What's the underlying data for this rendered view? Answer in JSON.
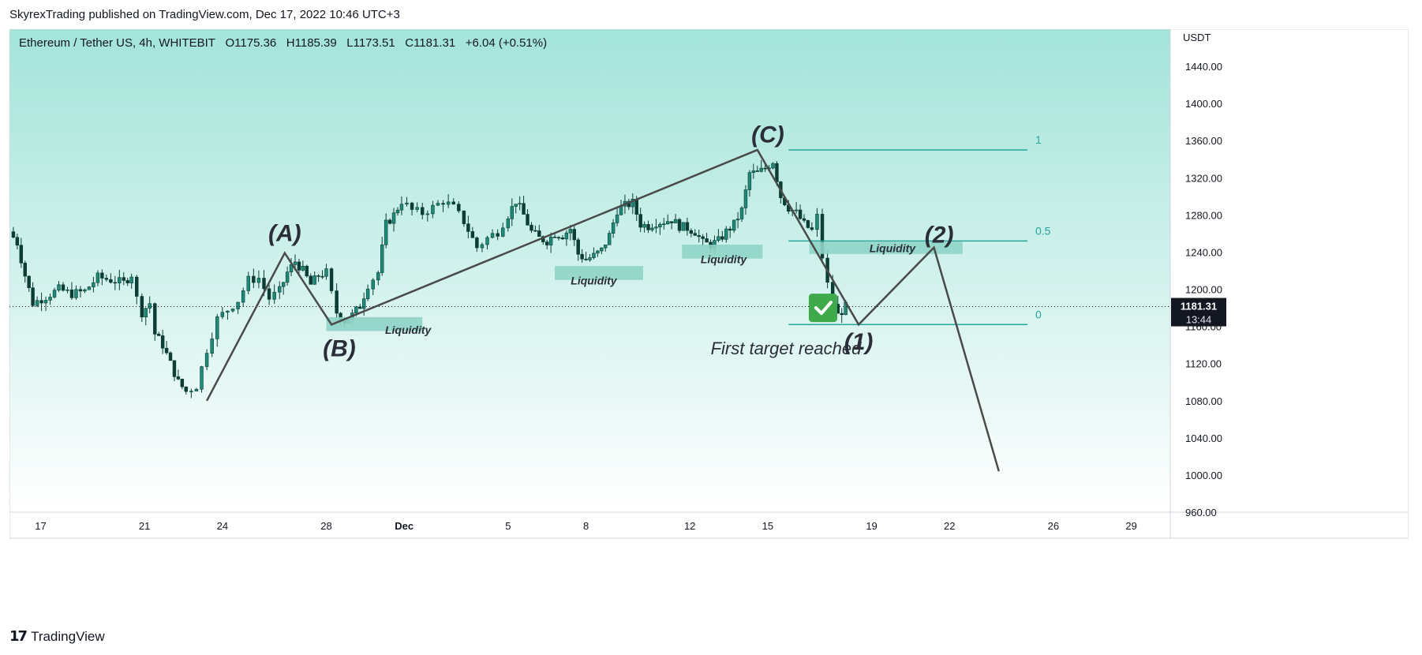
{
  "header": {
    "published_line": "SkyrexTrading published on TradingView.com, Dec 17, 2022 10:46 UTC+3"
  },
  "legend": {
    "symbol": "Ethereum / Tether US, 4h, WHITEBIT",
    "open": "O1175.36",
    "high": "H1185.39",
    "low": "L1173.51",
    "close": "C1181.31",
    "change": "+6.04 (+0.51%)"
  },
  "price_axis": {
    "currency": "USDT",
    "current_price": "1181.31",
    "countdown": "13:44"
  },
  "footer": {
    "brand": "TradingView"
  },
  "colors": {
    "background_top": "#a3e4d9",
    "background_bottom": "#ffffff",
    "candle_up": "#1e8a78",
    "candle_down": "#0b3d34",
    "wave_line": "#4a4a4a",
    "fib_line": "#26a69a",
    "liquidity_box": "#8fd4c6",
    "check_badge": "#3eaa4c"
  },
  "chart_data": {
    "type": "candlestick",
    "symbol": "Ethereum / Tether US",
    "timeframe": "4h",
    "exchange": "WHITEBIT",
    "ylim": [
      960,
      1480
    ],
    "y_ticks": [
      "1440.00",
      "1400.00",
      "1360.00",
      "1320.00",
      "1280.00",
      "1240.00",
      "1200.00",
      "1160.00",
      "1120.00",
      "1080.00",
      "1040.00",
      "1000.00",
      "960.00"
    ],
    "x_ticks": [
      {
        "label": "17",
        "day": -14
      },
      {
        "label": "21",
        "day": -10
      },
      {
        "label": "24",
        "day": -7
      },
      {
        "label": "28",
        "day": -3
      },
      {
        "label": "Dec",
        "day": 0
      },
      {
        "label": "5",
        "day": 4
      },
      {
        "label": "8",
        "day": 7
      },
      {
        "label": "12",
        "day": 11
      },
      {
        "label": "15",
        "day": 14
      },
      {
        "label": "19",
        "day": 18
      },
      {
        "label": "22",
        "day": 21
      },
      {
        "label": "26",
        "day": 25
      },
      {
        "label": "29",
        "day": 28
      }
    ],
    "xlim_days": [
      -15.2,
      29.5
    ],
    "price_series": [
      [
        -15.2,
        1262
      ],
      [
        -14.9,
        1250
      ],
      [
        -14.6,
        1215
      ],
      [
        -14.3,
        1185
      ],
      [
        -13.8,
        1192
      ],
      [
        -13.3,
        1200
      ],
      [
        -12.8,
        1195
      ],
      [
        -12.3,
        1198
      ],
      [
        -11.8,
        1213
      ],
      [
        -11.3,
        1210
      ],
      [
        -10.8,
        1207
      ],
      [
        -10.5,
        1216
      ],
      [
        -10.3,
        1190
      ],
      [
        -10.1,
        1175
      ],
      [
        -9.8,
        1185
      ],
      [
        -9.6,
        1152
      ],
      [
        -9.3,
        1140
      ],
      [
        -9.0,
        1120
      ],
      [
        -8.7,
        1100
      ],
      [
        -8.4,
        1090
      ],
      [
        -8.0,
        1096
      ],
      [
        -7.6,
        1135
      ],
      [
        -7.2,
        1168
      ],
      [
        -6.8,
        1178
      ],
      [
        -6.4,
        1188
      ],
      [
        -6.0,
        1210
      ],
      [
        -5.6,
        1212
      ],
      [
        -5.2,
        1190
      ],
      [
        -4.8,
        1198
      ],
      [
        -4.5,
        1218
      ],
      [
        -4.2,
        1230
      ],
      [
        -3.9,
        1220
      ],
      [
        -3.6,
        1205
      ],
      [
        -3.3,
        1215
      ],
      [
        -3.0,
        1218
      ],
      [
        -2.8,
        1195
      ],
      [
        -2.6,
        1175
      ],
      [
        -2.3,
        1166
      ],
      [
        -2.0,
        1172
      ],
      [
        -1.7,
        1182
      ],
      [
        -1.4,
        1205
      ],
      [
        -1.0,
        1218
      ],
      [
        -0.7,
        1270
      ],
      [
        -0.4,
        1280
      ],
      [
        -0.1,
        1295
      ],
      [
        0.3,
        1285
      ],
      [
        0.7,
        1282
      ],
      [
        1.1,
        1288
      ],
      [
        1.5,
        1295
      ],
      [
        1.9,
        1288
      ],
      [
        2.3,
        1273
      ],
      [
        2.8,
        1245
      ],
      [
        3.2,
        1255
      ],
      [
        3.6,
        1262
      ],
      [
        4.0,
        1280
      ],
      [
        4.3,
        1295
      ],
      [
        4.6,
        1280
      ],
      [
        4.9,
        1262
      ],
      [
        5.2,
        1255
      ],
      [
        5.5,
        1252
      ],
      [
        5.8,
        1260
      ],
      [
        6.1,
        1258
      ],
      [
        6.4,
        1265
      ],
      [
        6.7,
        1238
      ],
      [
        7.0,
        1232
      ],
      [
        7.3,
        1236
      ],
      [
        7.6,
        1242
      ],
      [
        7.9,
        1258
      ],
      [
        8.2,
        1285
      ],
      [
        8.5,
        1290
      ],
      [
        8.8,
        1293
      ],
      [
        9.1,
        1270
      ],
      [
        9.4,
        1268
      ],
      [
        9.7,
        1272
      ],
      [
        10.0,
        1273
      ],
      [
        10.3,
        1275
      ],
      [
        10.6,
        1268
      ],
      [
        10.9,
        1266
      ],
      [
        11.2,
        1262
      ],
      [
        11.5,
        1250
      ],
      [
        11.8,
        1248
      ],
      [
        12.1,
        1252
      ],
      [
        12.4,
        1262
      ],
      [
        12.7,
        1270
      ],
      [
        13.0,
        1285
      ],
      [
        13.3,
        1325
      ],
      [
        13.6,
        1325
      ],
      [
        13.9,
        1330
      ],
      [
        14.2,
        1338
      ],
      [
        14.5,
        1300
      ],
      [
        14.8,
        1288
      ],
      [
        15.1,
        1282
      ],
      [
        15.4,
        1270
      ],
      [
        15.7,
        1263
      ],
      [
        15.9,
        1278
      ],
      [
        16.1,
        1235
      ],
      [
        16.3,
        1205
      ],
      [
        16.5,
        1185
      ],
      [
        16.7,
        1172
      ],
      [
        17.0,
        1181.31
      ]
    ],
    "current_price": 1181.31,
    "wave_path": [
      {
        "day": -7.6,
        "price": 1080
      },
      {
        "day": -4.6,
        "price": 1239
      },
      {
        "day": -2.8,
        "price": 1162
      },
      {
        "day": 13.6,
        "price": 1350
      },
      {
        "day": 17.5,
        "price": 1162
      },
      {
        "day": 20.4,
        "price": 1245
      },
      {
        "day": 22.9,
        "price": 1004
      }
    ],
    "wave_labels": [
      {
        "text": "(A)",
        "day": -4.6,
        "price": 1252
      },
      {
        "text": "(B)",
        "day": -2.5,
        "price": 1128
      },
      {
        "text": "(C)",
        "day": 14.0,
        "price": 1358
      },
      {
        "text": "(1)",
        "day": 17.5,
        "price": 1135
      },
      {
        "text": "(2)",
        "day": 20.6,
        "price": 1250
      }
    ],
    "fib_levels": [
      {
        "label": "1",
        "price": 1350
      },
      {
        "label": "0.5",
        "price": 1252
      },
      {
        "label": "0",
        "price": 1162
      }
    ],
    "fib_range_days": [
      14.8,
      24.0
    ],
    "liquidity_zones": [
      {
        "label": "Liquidity",
        "day_start": -3.0,
        "day_end": 0.7,
        "price_low": 1155,
        "price_high": 1170
      },
      {
        "label": "Liquidity",
        "day_start": 5.8,
        "day_end": 9.2,
        "price_low": 1210,
        "price_high": 1225
      },
      {
        "label": "Liquidity",
        "day_start": 10.7,
        "day_end": 13.8,
        "price_low": 1233,
        "price_high": 1248
      },
      {
        "label": "Liquidity",
        "day_start": 15.6,
        "day_end": 21.5,
        "price_low": 1238,
        "price_high": 1251
      }
    ],
    "annotations": [
      {
        "text": "First target reached",
        "day": 14.7,
        "price": 1130,
        "icon": "check-icon"
      }
    ]
  }
}
